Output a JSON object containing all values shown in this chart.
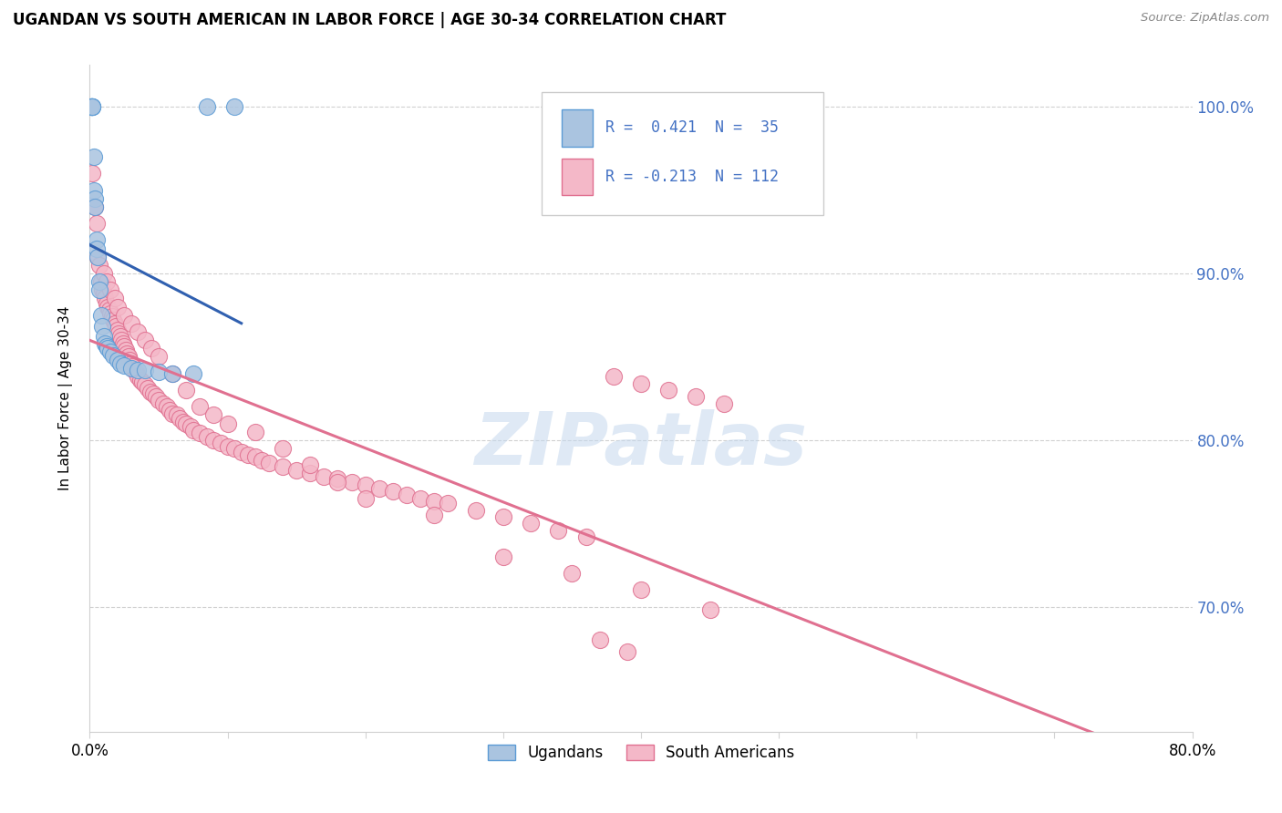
{
  "title": "UGANDAN VS SOUTH AMERICAN IN LABOR FORCE | AGE 30-34 CORRELATION CHART",
  "source": "Source: ZipAtlas.com",
  "ylabel": "In Labor Force | Age 30-34",
  "xlim": [
    0.0,
    0.8
  ],
  "ylim": [
    0.625,
    1.025
  ],
  "yticks": [
    0.7,
    0.8,
    0.9,
    1.0
  ],
  "ytick_labels": [
    "70.0%",
    "80.0%",
    "90.0%",
    "100.0%"
  ],
  "xticks": [
    0.0,
    0.1,
    0.2,
    0.3,
    0.4,
    0.5,
    0.6,
    0.7,
    0.8
  ],
  "xtick_labels": [
    "0.0%",
    "",
    "",
    "",
    "",
    "",
    "",
    "",
    "80.0%"
  ],
  "legend_r_ugandan": "R =  0.421  N =  35",
  "legend_r_south": "R = -0.213  N = 112",
  "ugandan_color": "#aac4e0",
  "ugandan_edge": "#5b9bd5",
  "south_color": "#f4b8c8",
  "south_edge": "#e07090",
  "line_ugandan": "#3060b0",
  "line_south": "#e07090",
  "watermark": "ZIPatlas",
  "legend_box_color": "#4472c4",
  "ugandan_x": [
    0.001,
    0.001,
    0.001,
    0.002,
    0.002,
    0.002,
    0.002,
    0.003,
    0.003,
    0.004,
    0.004,
    0.005,
    0.005,
    0.006,
    0.007,
    0.007,
    0.008,
    0.009,
    0.01,
    0.011,
    0.012,
    0.013,
    0.015,
    0.017,
    0.02,
    0.022,
    0.025,
    0.03,
    0.035,
    0.04,
    0.05,
    0.06,
    0.075,
    0.085,
    0.105
  ],
  "ugandan_y": [
    1.0,
    1.0,
    1.0,
    1.0,
    1.0,
    1.0,
    1.0,
    0.97,
    0.95,
    0.945,
    0.94,
    0.92,
    0.915,
    0.91,
    0.895,
    0.89,
    0.875,
    0.868,
    0.862,
    0.858,
    0.856,
    0.855,
    0.853,
    0.851,
    0.848,
    0.846,
    0.845,
    0.843,
    0.842,
    0.842,
    0.841,
    0.84,
    0.84,
    1.0,
    1.0
  ],
  "south_x": [
    0.002,
    0.004,
    0.005,
    0.006,
    0.007,
    0.008,
    0.009,
    0.01,
    0.011,
    0.012,
    0.013,
    0.014,
    0.015,
    0.016,
    0.017,
    0.018,
    0.019,
    0.02,
    0.021,
    0.022,
    0.023,
    0.024,
    0.025,
    0.026,
    0.027,
    0.028,
    0.029,
    0.03,
    0.031,
    0.032,
    0.034,
    0.035,
    0.037,
    0.038,
    0.04,
    0.042,
    0.044,
    0.046,
    0.048,
    0.05,
    0.053,
    0.056,
    0.058,
    0.06,
    0.063,
    0.065,
    0.068,
    0.07,
    0.073,
    0.075,
    0.08,
    0.085,
    0.09,
    0.095,
    0.1,
    0.105,
    0.11,
    0.115,
    0.12,
    0.125,
    0.13,
    0.14,
    0.15,
    0.16,
    0.17,
    0.18,
    0.19,
    0.2,
    0.21,
    0.22,
    0.23,
    0.24,
    0.25,
    0.26,
    0.28,
    0.3,
    0.32,
    0.34,
    0.36,
    0.38,
    0.4,
    0.42,
    0.44,
    0.46,
    0.01,
    0.012,
    0.015,
    0.018,
    0.02,
    0.025,
    0.03,
    0.035,
    0.04,
    0.045,
    0.05,
    0.06,
    0.07,
    0.08,
    0.09,
    0.1,
    0.12,
    0.14,
    0.16,
    0.18,
    0.2,
    0.25,
    0.3,
    0.35,
    0.4,
    0.45,
    0.37,
    0.39
  ],
  "south_y": [
    0.96,
    0.94,
    0.93,
    0.91,
    0.905,
    0.895,
    0.89,
    0.888,
    0.885,
    0.882,
    0.88,
    0.878,
    0.876,
    0.874,
    0.872,
    0.87,
    0.868,
    0.866,
    0.864,
    0.862,
    0.86,
    0.858,
    0.856,
    0.854,
    0.852,
    0.85,
    0.848,
    0.846,
    0.844,
    0.842,
    0.84,
    0.838,
    0.836,
    0.835,
    0.833,
    0.831,
    0.829,
    0.828,
    0.826,
    0.824,
    0.822,
    0.82,
    0.818,
    0.816,
    0.815,
    0.813,
    0.811,
    0.81,
    0.808,
    0.806,
    0.804,
    0.802,
    0.8,
    0.798,
    0.796,
    0.795,
    0.793,
    0.791,
    0.79,
    0.788,
    0.786,
    0.784,
    0.782,
    0.78,
    0.778,
    0.777,
    0.775,
    0.773,
    0.771,
    0.769,
    0.767,
    0.765,
    0.763,
    0.762,
    0.758,
    0.754,
    0.75,
    0.746,
    0.742,
    0.838,
    0.834,
    0.83,
    0.826,
    0.822,
    0.9,
    0.895,
    0.89,
    0.885,
    0.88,
    0.875,
    0.87,
    0.865,
    0.86,
    0.855,
    0.85,
    0.84,
    0.83,
    0.82,
    0.815,
    0.81,
    0.805,
    0.795,
    0.785,
    0.775,
    0.765,
    0.755,
    0.73,
    0.72,
    0.71,
    0.698,
    0.68,
    0.673
  ]
}
